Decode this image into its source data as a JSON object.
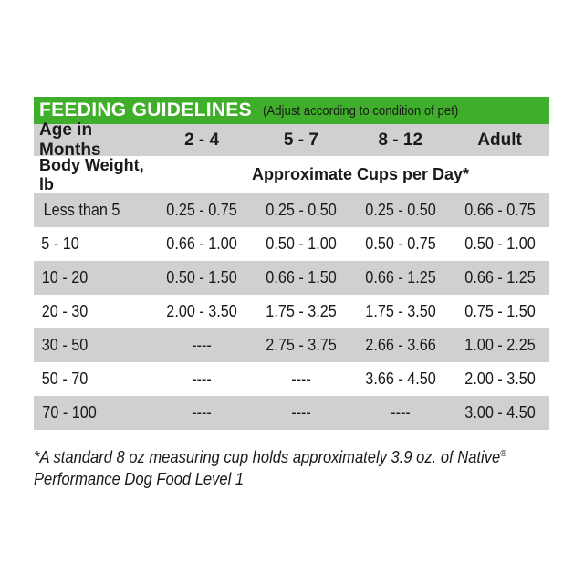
{
  "title": "FEEDING GUIDELINES",
  "subtitle": "(Adjust according to condition of pet)",
  "header": {
    "label": "Age in Months",
    "columns": [
      "2 - 4",
      "5 - 7",
      "8 - 12",
      "Adult"
    ]
  },
  "subheader": {
    "left": "Body Weight, lb",
    "right": "Approximate Cups per Day*"
  },
  "rows": [
    {
      "weight": "Less than 5",
      "values": [
        "0.25 - 0.75",
        "0.25 - 0.50",
        "0.25 - 0.50",
        "0.66 - 0.75"
      ]
    },
    {
      "weight": "5 - 10",
      "values": [
        "0.66 - 1.00",
        "0.50 - 1.00",
        "0.50 - 0.75",
        "0.50 - 1.00"
      ]
    },
    {
      "weight": "10 - 20",
      "values": [
        "0.50 - 1.50",
        "0.66 - 1.50",
        "0.66 - 1.25",
        "0.66 - 1.25"
      ]
    },
    {
      "weight": "20 - 30",
      "values": [
        "2.00 - 3.50",
        "1.75 - 3.25",
        "1.75 - 3.50",
        "0.75 - 1.50"
      ]
    },
    {
      "weight": "30 - 50",
      "values": [
        "----",
        "2.75 - 3.75",
        "2.66 - 3.66",
        "1.00 - 2.25"
      ]
    },
    {
      "weight": "50 - 70",
      "values": [
        "----",
        "----",
        "3.66 - 4.50",
        "2.00 - 3.50"
      ]
    },
    {
      "weight": "70 - 100",
      "values": [
        "----",
        "----",
        "----",
        "3.00 - 4.50"
      ]
    }
  ],
  "footnote": {
    "line1": "*A standard 8 oz measuring cup holds approximately 3.9 oz. of Native",
    "mark": "®",
    "line2": "Performance Dog Food Level 1"
  },
  "colors": {
    "accent": "#3fae2a",
    "stripe": "#d0d0d0"
  }
}
